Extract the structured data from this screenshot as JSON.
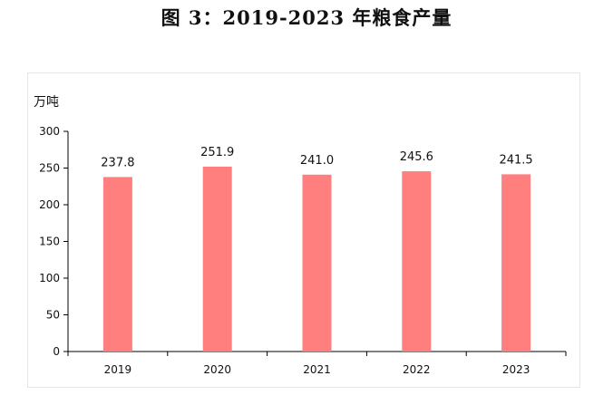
{
  "chart_data": {
    "type": "bar",
    "title": "图 3：2019-2023 年粮食产量",
    "ylabel": "万吨",
    "xlabel": "",
    "categories": [
      "2019",
      "2020",
      "2021",
      "2022",
      "2023"
    ],
    "values": [
      237.8,
      251.9,
      241.0,
      245.6,
      241.5
    ],
    "value_labels": [
      "237.8",
      "251.9",
      "241.0",
      "245.6",
      "241.5"
    ],
    "ylim": [
      0,
      300
    ],
    "yticks": [
      "0",
      "50",
      "100",
      "150",
      "200",
      "250",
      "300"
    ],
    "bar_color": "#ff7f7f",
    "grid": false,
    "legend": "none"
  }
}
